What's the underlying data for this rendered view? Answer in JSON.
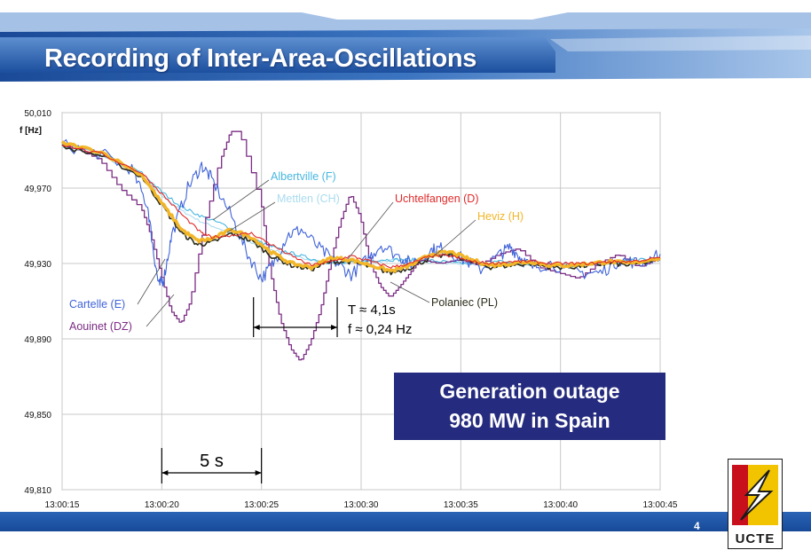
{
  "slide": {
    "title": "Recording of Inter-Area-Oscillations",
    "page_number": "4",
    "logo_text": "UCTE",
    "callout_line1": "Generation outage",
    "callout_line2": "980 MW in Spain"
  },
  "colors": {
    "banner": "#1f57a8",
    "footer": "#1f57a8",
    "callout": "#252b7e"
  },
  "chart_data": {
    "type": "line",
    "ylabel": "f [Hz]",
    "xlabel": "",
    "ylim": [
      49.81,
      50.01
    ],
    "xlim": [
      0,
      30
    ],
    "y_ticks": [
      "50,010",
      "49,970",
      "49,930",
      "49,890",
      "49,850",
      "49,810"
    ],
    "x_ticks": [
      "13:00:15",
      "13:00:20",
      "13:00:25",
      "13:00:30",
      "13:00:35",
      "13:00:40",
      "13:00:45"
    ],
    "grid": true,
    "annotations": {
      "span_5s": "5 s",
      "period": "T ≈ 4,1s",
      "frequency": "f ≈ 0,24 Hz"
    },
    "series": [
      {
        "name": "Cartelle (E)",
        "color": "#3f63d8",
        "x": [
          0,
          2,
          3.5,
          4.3,
          4.6,
          4.85,
          5.1,
          5.5,
          6.3,
          7,
          7.5,
          8.5,
          9.3,
          10,
          10.6,
          11.3,
          12,
          13,
          13.8,
          14.5,
          15.3,
          16,
          17,
          17.5,
          18.5,
          19,
          20,
          21,
          22,
          22.5,
          23,
          23.5,
          24.5,
          26,
          27,
          28,
          29,
          30
        ],
        "y": [
          49.993,
          49.988,
          49.98,
          49.96,
          49.935,
          49.918,
          49.922,
          49.945,
          49.97,
          49.982,
          49.975,
          49.955,
          49.935,
          49.922,
          49.93,
          49.945,
          49.948,
          49.937,
          49.93,
          49.924,
          49.932,
          49.94,
          49.933,
          49.93,
          49.937,
          49.938,
          49.933,
          49.927,
          49.935,
          49.939,
          49.933,
          49.928,
          49.93,
          49.925,
          49.925,
          49.932,
          49.93,
          49.935
        ]
      },
      {
        "name": "Aouinet (DZ)",
        "color": "#7b2d84",
        "x": [
          0,
          1,
          2,
          3,
          4,
          4.5,
          5,
          5.5,
          6,
          6.5,
          7.2,
          8,
          8.5,
          9,
          10,
          10.5,
          11,
          11.5,
          12,
          12.5,
          13,
          13.5,
          14,
          14.5,
          15,
          15.5,
          16,
          16.5,
          17,
          17.5,
          18,
          19,
          20,
          21,
          22,
          23,
          24,
          25,
          26,
          27,
          28,
          29,
          30
        ],
        "y": [
          49.993,
          49.99,
          49.985,
          49.97,
          49.96,
          49.945,
          49.925,
          49.905,
          49.898,
          49.91,
          49.95,
          49.985,
          50.0,
          50.0,
          49.965,
          49.925,
          49.9,
          49.885,
          49.878,
          49.888,
          49.905,
          49.93,
          49.952,
          49.967,
          49.955,
          49.93,
          49.918,
          49.912,
          49.918,
          49.925,
          49.932,
          49.93,
          49.932,
          49.929,
          49.935,
          49.938,
          49.928,
          49.925,
          49.922,
          49.93,
          49.935,
          49.928,
          49.933
        ]
      },
      {
        "name": "Albertville (F)",
        "color": "#49b7e0",
        "x": [
          0,
          2,
          4,
          5,
          6,
          7,
          8,
          9,
          10,
          11,
          12,
          13,
          14,
          15,
          16,
          17,
          18,
          19,
          20,
          21,
          22,
          23,
          24,
          25,
          26,
          27,
          28,
          29,
          30
        ],
        "y": [
          49.993,
          49.988,
          49.978,
          49.968,
          49.96,
          49.955,
          49.951,
          49.946,
          49.941,
          49.937,
          49.934,
          49.931,
          49.93,
          49.931,
          49.932,
          49.932,
          49.932,
          49.931,
          49.93,
          49.93,
          49.931,
          49.93,
          49.929,
          49.929,
          49.929,
          49.93,
          49.931,
          49.932,
          49.932
        ]
      },
      {
        "name": "Mettlen (CH)",
        "color": "#a9dcef",
        "x": [
          0,
          2,
          4,
          5,
          6,
          7,
          8,
          9,
          10,
          11,
          12,
          13,
          14,
          15,
          16,
          17,
          18,
          19,
          20,
          21,
          22,
          23,
          24,
          25,
          26,
          27,
          28,
          29,
          30
        ],
        "y": [
          49.992,
          49.987,
          49.976,
          49.966,
          49.958,
          49.952,
          49.948,
          49.943,
          49.939,
          49.936,
          49.933,
          49.931,
          49.93,
          49.931,
          49.931,
          49.932,
          49.931,
          49.93,
          49.93,
          49.929,
          49.93,
          49.93,
          49.929,
          49.929,
          49.929,
          49.93,
          49.93,
          49.931,
          49.932
        ]
      },
      {
        "name": "Uchtelfangen (D)",
        "color": "#e02a2a",
        "x": [
          0,
          2,
          4,
          5,
          6,
          7,
          7.5,
          8.5,
          9.5,
          10.5,
          11.5,
          12.5,
          13.5,
          14.5,
          15.5,
          16.5,
          17.5,
          18.5,
          19.5,
          20.5,
          21.5,
          22.5,
          23.5,
          24.5,
          25.5,
          26.5,
          27.5,
          28.5,
          30
        ],
        "y": [
          49.993,
          49.988,
          49.978,
          49.967,
          49.956,
          49.946,
          49.944,
          49.945,
          49.946,
          49.94,
          49.934,
          49.929,
          49.931,
          49.934,
          49.931,
          49.928,
          49.93,
          49.934,
          49.934,
          49.931,
          49.93,
          49.931,
          49.931,
          49.93,
          49.93,
          49.93,
          49.931,
          49.931,
          49.933
        ]
      },
      {
        "name": "Heviz (H)",
        "color": "#f2b628",
        "x": [
          0,
          2,
          4,
          5,
          6,
          6.8,
          7.5,
          8.5,
          9.5,
          10.5,
          11.5,
          12.5,
          13.5,
          14.5,
          15.5,
          16.5,
          17.5,
          18.5,
          19.5,
          20.5,
          21.5,
          22.5,
          23.5,
          24.5,
          25.5,
          26.5,
          27.5,
          28.5,
          30
        ],
        "y": [
          49.994,
          49.989,
          49.977,
          49.962,
          49.948,
          49.942,
          49.943,
          49.948,
          49.944,
          49.936,
          49.93,
          49.928,
          49.933,
          49.932,
          49.929,
          49.926,
          49.929,
          49.935,
          49.936,
          49.932,
          49.929,
          49.93,
          49.931,
          49.929,
          49.929,
          49.93,
          49.931,
          49.93,
          49.933
        ]
      },
      {
        "name": "Polaniec (PL)",
        "color": "#2b2b1a",
        "x": [
          0,
          2,
          4,
          5,
          6,
          6.8,
          7.5,
          8.5,
          9.5,
          10.5,
          11.5,
          12.5,
          13.5,
          14.5,
          15.5,
          16.5,
          17.5,
          18.5,
          19.5,
          20.5,
          21.5,
          22.5,
          23.5,
          24.5,
          25.5,
          26.5,
          27.5,
          28.5,
          30
        ],
        "y": [
          49.992,
          49.987,
          49.976,
          49.961,
          49.946,
          49.94,
          49.941,
          49.946,
          49.942,
          49.934,
          49.929,
          49.927,
          49.931,
          49.931,
          49.928,
          49.925,
          49.928,
          49.933,
          49.935,
          49.931,
          49.928,
          49.929,
          49.93,
          49.928,
          49.928,
          49.929,
          49.93,
          49.929,
          49.932
        ]
      }
    ]
  }
}
